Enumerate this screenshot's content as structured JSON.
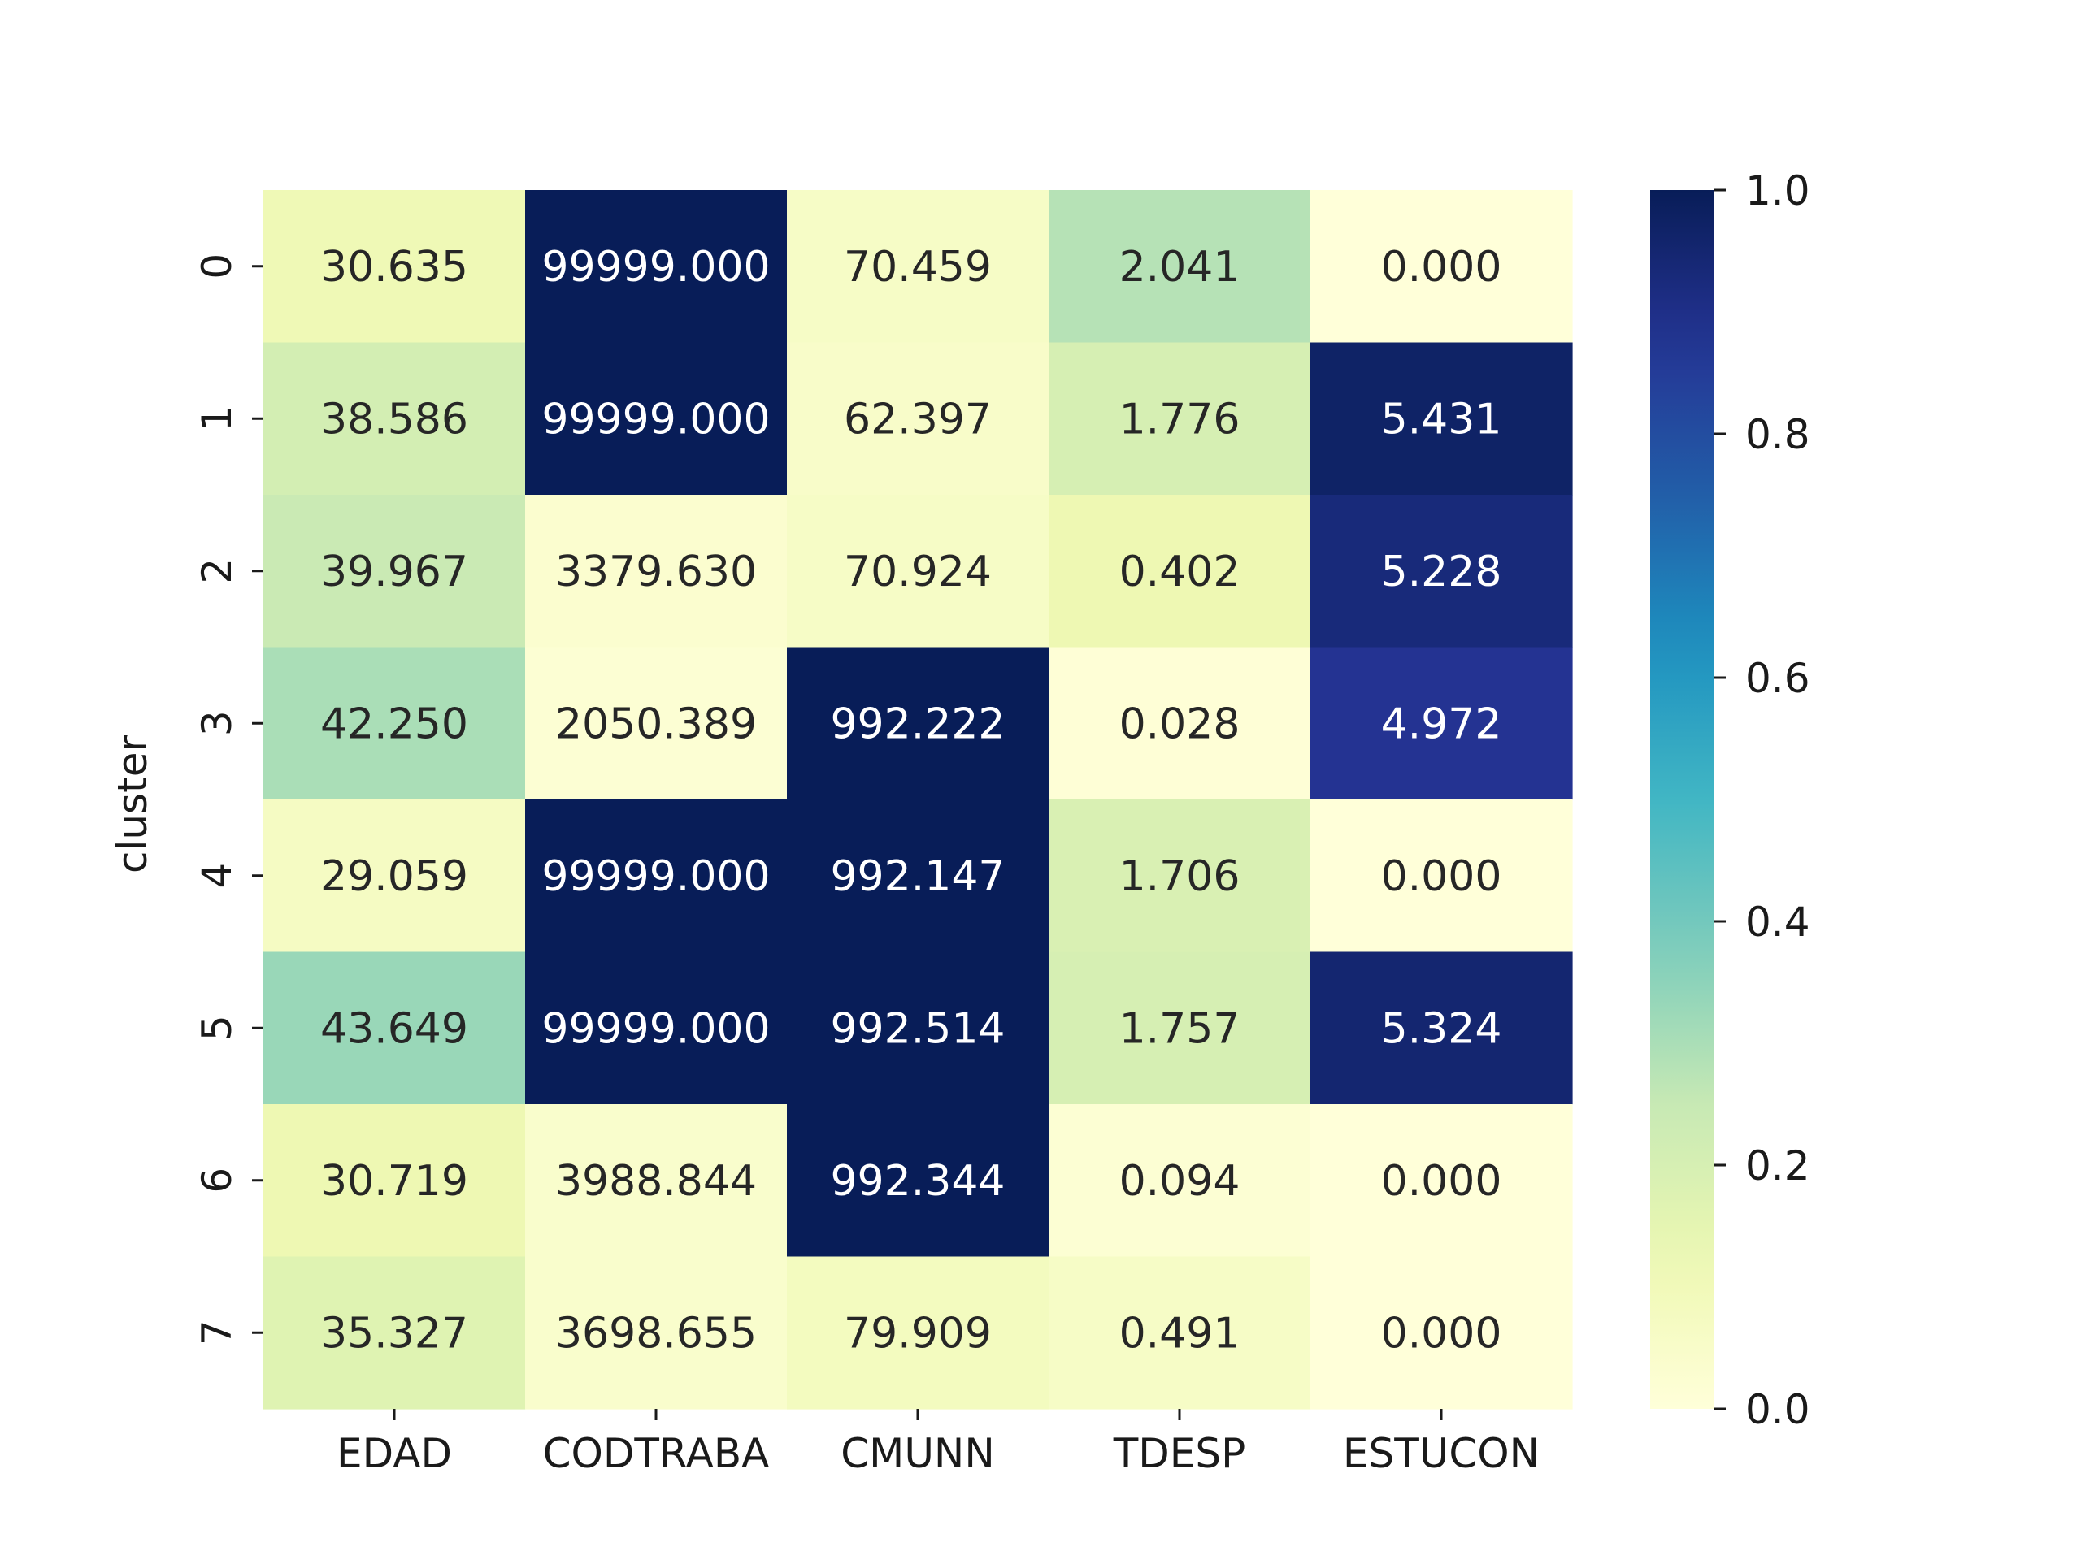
{
  "chart_data": {
    "type": "heatmap",
    "title": "",
    "xlabel": "",
    "ylabel": "cluster",
    "x_categories": [
      "EDAD",
      "CODTRABA",
      "CMUNN",
      "TDESP",
      "ESTUCON"
    ],
    "y_categories": [
      "0",
      "1",
      "2",
      "3",
      "4",
      "5",
      "6",
      "7"
    ],
    "cell_labels": [
      [
        "30.635",
        "99999.000",
        "70.459",
        "2.041",
        "0.000"
      ],
      [
        "38.586",
        "99999.000",
        "62.397",
        "1.776",
        "5.431"
      ],
      [
        "39.967",
        "3379.630",
        "70.924",
        "0.402",
        "5.228"
      ],
      [
        "42.250",
        "2050.389",
        "992.222",
        "0.028",
        "4.972"
      ],
      [
        "29.059",
        "99999.000",
        "992.147",
        "1.706",
        "0.000"
      ],
      [
        "43.649",
        "99999.000",
        "992.514",
        "1.757",
        "5.324"
      ],
      [
        "30.719",
        "3988.844",
        "992.344",
        "0.094",
        "0.000"
      ],
      [
        "35.327",
        "3698.655",
        "79.909",
        "0.491",
        "0.000"
      ]
    ],
    "normalized_values": [
      [
        0.11,
        1.0,
        0.06,
        0.28,
        0.0
      ],
      [
        0.21,
        1.0,
        0.05,
        0.2,
        0.97
      ],
      [
        0.24,
        0.03,
        0.06,
        0.12,
        0.93
      ],
      [
        0.3,
        0.02,
        1.0,
        0.01,
        0.88
      ],
      [
        0.07,
        1.0,
        1.0,
        0.19,
        0.0
      ],
      [
        0.33,
        1.0,
        1.0,
        0.2,
        0.95
      ],
      [
        0.12,
        0.04,
        1.0,
        0.02,
        0.0
      ],
      [
        0.17,
        0.04,
        0.08,
        0.06,
        0.0
      ]
    ],
    "colormap": "YlGnBu",
    "colorbar": {
      "range": [
        0.0,
        1.0
      ],
      "ticks": [
        "0.0",
        "0.2",
        "0.4",
        "0.6",
        "0.8",
        "1.0"
      ]
    },
    "grid": false,
    "legend": "colorbar right"
  }
}
